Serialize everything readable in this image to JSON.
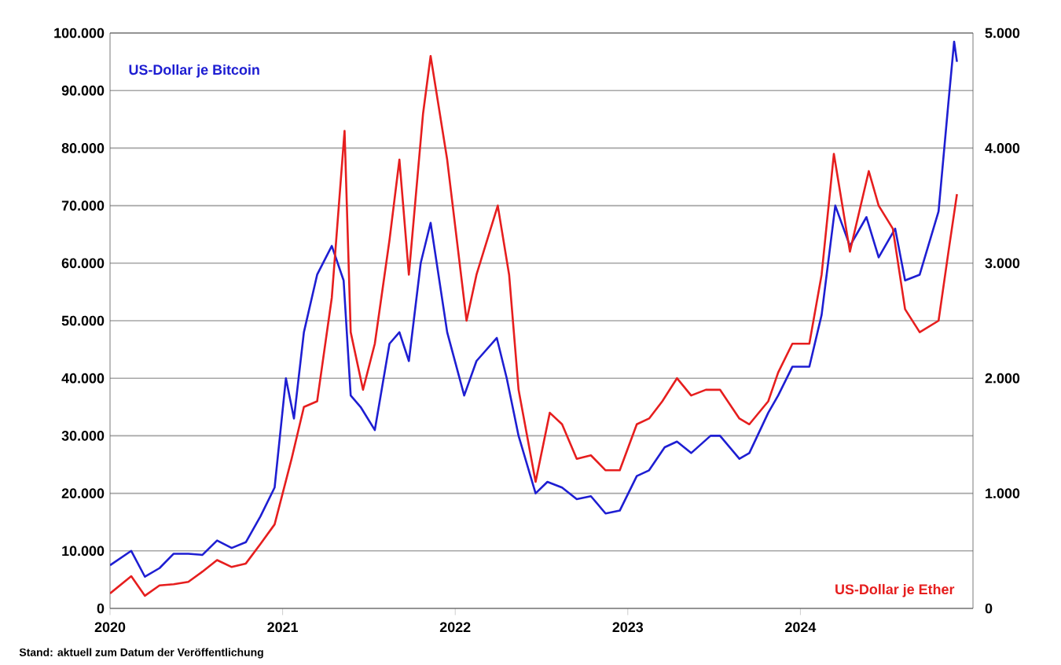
{
  "chart_data": {
    "type": "line",
    "annotations": [
      "Stand: aktuell zum Datum der Veröffentlichung"
    ],
    "xlim": [
      "2020-01-01",
      "2025-01-01"
    ],
    "xticks": [
      {
        "value": "2020-01-01",
        "label": "2020"
      },
      {
        "value": "2021-01-01",
        "label": "2021"
      },
      {
        "value": "2022-01-01",
        "label": "2022"
      },
      {
        "value": "2023-01-01",
        "label": "2023"
      },
      {
        "value": "2024-01-01",
        "label": "2024"
      }
    ],
    "ylim": [
      0,
      100000
    ],
    "yticks": [
      {
        "value": 0,
        "label": "0"
      },
      {
        "value": 10000,
        "label": "10.000"
      },
      {
        "value": 20000,
        "label": "20.000"
      },
      {
        "value": 30000,
        "label": "30.000"
      },
      {
        "value": 40000,
        "label": "40.000"
      },
      {
        "value": 50000,
        "label": "50.000"
      },
      {
        "value": 60000,
        "label": "60.000"
      },
      {
        "value": 70000,
        "label": "70.000"
      },
      {
        "value": 80000,
        "label": "80.000"
      },
      {
        "value": 90000,
        "label": "90.000"
      },
      {
        "value": 100000,
        "label": "100.000"
      }
    ],
    "y2lim": [
      0,
      5000
    ],
    "y2ticks": [
      {
        "value": 0,
        "label": "0"
      },
      {
        "value": 1000,
        "label": "1.000"
      },
      {
        "value": 2000,
        "label": "2.000"
      },
      {
        "value": 3000,
        "label": "3.000"
      },
      {
        "value": 4000,
        "label": "4.000"
      },
      {
        "value": 5000,
        "label": "5.000"
      }
    ],
    "grid": "y",
    "series": [
      {
        "name": "US-Dollar je Bitcoin",
        "color": "#1e1ed2",
        "x": [
          "2020-01-01",
          "2020-02-15",
          "2020-03-15",
          "2020-04-15",
          "2020-05-15",
          "2020-06-15",
          "2020-07-15",
          "2020-08-15",
          "2020-09-15",
          "2020-10-15",
          "2020-11-15",
          "2020-12-15",
          "2021-01-08",
          "2021-01-25",
          "2021-02-15",
          "2021-03-15",
          "2021-04-15",
          "2021-05-10",
          "2021-05-25",
          "2021-06-15",
          "2021-07-15",
          "2021-08-15",
          "2021-09-05",
          "2021-09-25",
          "2021-10-20",
          "2021-11-10",
          "2021-12-15",
          "2022-01-20",
          "2022-02-15",
          "2022-03-30",
          "2022-04-20",
          "2022-05-15",
          "2022-06-20",
          "2022-07-15",
          "2022-08-15",
          "2022-09-15",
          "2022-10-15",
          "2022-11-15",
          "2022-12-15",
          "2023-01-20",
          "2023-02-15",
          "2023-03-20",
          "2023-04-15",
          "2023-05-15",
          "2023-06-25",
          "2023-07-15",
          "2023-08-25",
          "2023-09-15",
          "2023-10-25",
          "2023-11-15",
          "2023-12-15",
          "2024-01-20",
          "2024-02-15",
          "2024-03-15",
          "2024-04-15",
          "2024-05-20",
          "2024-06-15",
          "2024-07-20",
          "2024-08-10",
          "2024-09-10",
          "2024-10-20",
          "2024-11-10",
          "2024-11-22",
          "2024-11-28"
        ],
        "values": [
          7500,
          10000,
          5500,
          7000,
          9500,
          9500,
          9300,
          11800,
          10500,
          11500,
          16000,
          21000,
          40000,
          33000,
          48000,
          58000,
          63000,
          57000,
          37000,
          35000,
          31000,
          46000,
          48000,
          43000,
          60000,
          67000,
          48000,
          37000,
          43000,
          47000,
          40000,
          30000,
          20000,
          22000,
          21000,
          19000,
          19500,
          16500,
          17000,
          23000,
          24000,
          28000,
          29000,
          27000,
          30000,
          30000,
          26000,
          27000,
          34000,
          37000,
          42000,
          42000,
          51000,
          70000,
          63000,
          68000,
          61000,
          66000,
          57000,
          58000,
          69000,
          88000,
          98500,
          95000
        ]
      },
      {
        "name": "US-Dollar je Ether",
        "color": "#e61e1e",
        "axis": "y2",
        "x": [
          "2020-01-01",
          "2020-02-15",
          "2020-03-15",
          "2020-04-15",
          "2020-05-15",
          "2020-06-15",
          "2020-07-15",
          "2020-08-15",
          "2020-09-15",
          "2020-10-15",
          "2020-11-15",
          "2020-12-15",
          "2021-01-20",
          "2021-02-15",
          "2021-03-15",
          "2021-04-15",
          "2021-05-12",
          "2021-05-25",
          "2021-06-20",
          "2021-07-15",
          "2021-08-15",
          "2021-09-05",
          "2021-09-25",
          "2021-10-25",
          "2021-11-10",
          "2021-12-15",
          "2022-01-25",
          "2022-02-15",
          "2022-04-01",
          "2022-04-25",
          "2022-05-15",
          "2022-06-20",
          "2022-07-20",
          "2022-08-15",
          "2022-09-15",
          "2022-10-15",
          "2022-11-15",
          "2022-12-15",
          "2023-01-20",
          "2023-02-15",
          "2023-03-15",
          "2023-04-15",
          "2023-05-15",
          "2023-06-15",
          "2023-07-15",
          "2023-08-25",
          "2023-09-15",
          "2023-10-25",
          "2023-11-15",
          "2023-12-15",
          "2024-01-20",
          "2024-02-15",
          "2024-03-12",
          "2024-04-15",
          "2024-05-25",
          "2024-06-15",
          "2024-07-15",
          "2024-08-10",
          "2024-09-10",
          "2024-10-20",
          "2024-11-10",
          "2024-11-28"
        ],
        "values": [
          130,
          280,
          110,
          200,
          210,
          230,
          320,
          420,
          360,
          390,
          560,
          730,
          1300,
          1750,
          1800,
          2700,
          4150,
          2400,
          1900,
          2300,
          3200,
          3900,
          2900,
          4300,
          4800,
          3900,
          2500,
          2900,
          3500,
          2900,
          1900,
          1100,
          1700,
          1600,
          1300,
          1330,
          1200,
          1200,
          1600,
          1650,
          1800,
          2000,
          1850,
          1900,
          1900,
          1650,
          1600,
          1800,
          2050,
          2300,
          2300,
          2900,
          3950,
          3100,
          3800,
          3500,
          3300,
          2600,
          2400,
          2500,
          3100,
          3600
        ]
      }
    ]
  }
}
